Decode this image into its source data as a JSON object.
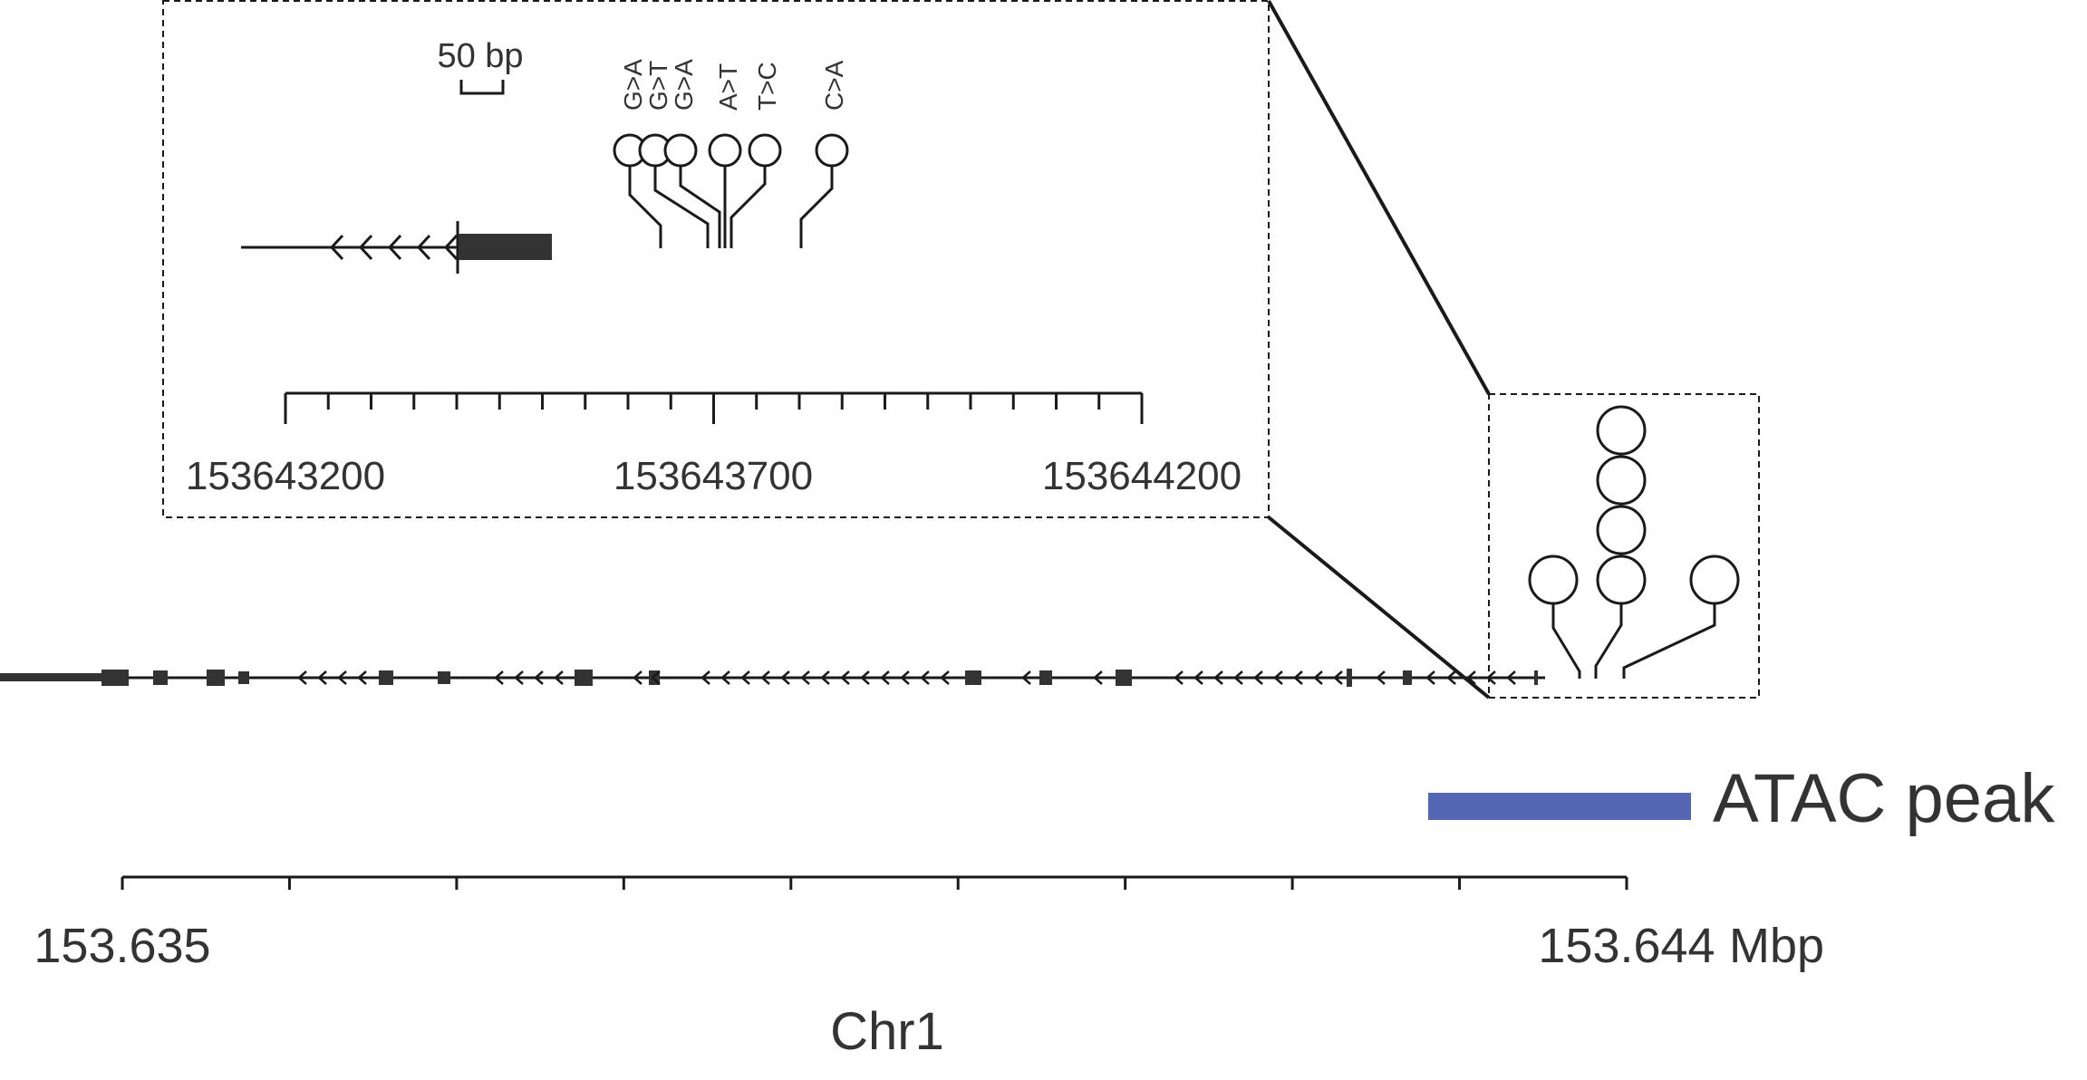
{
  "inset": {
    "scale_bar_label": "50 bp",
    "axis_labels": [
      "153643200",
      "153643700",
      "153644200"
    ],
    "mutations": [
      {
        "label": "G>A"
      },
      {
        "label": "G>T"
      },
      {
        "label": "G>A"
      },
      {
        "label": "A>T"
      },
      {
        "label": "T>C"
      },
      {
        "label": "C>A"
      }
    ]
  },
  "main": {
    "axis_start_label": "153.635",
    "axis_end_label": "153.644",
    "axis_unit": "Mbp",
    "chromosome_label": "Chr1",
    "atac_label": "ATAC peak",
    "atac_color": "#5566b4",
    "mutation_stack_counts": {
      "left": 1,
      "center": 4,
      "right": 1
    }
  },
  "colors": {
    "gene": "#333333",
    "line": "#1a1a1a"
  }
}
